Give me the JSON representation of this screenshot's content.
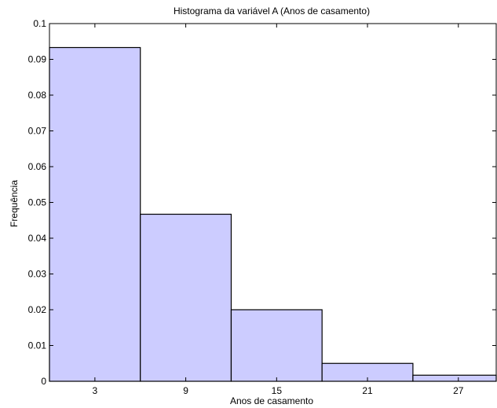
{
  "chart_data": {
    "type": "bar",
    "title": "Histograma da variável A (Anos de casamento)",
    "xlabel": "Anos de casamento",
    "ylabel": "Frequência",
    "categories": [
      "3",
      "9",
      "15",
      "21",
      "27"
    ],
    "bin_edges": [
      0,
      6,
      12,
      18,
      24,
      30
    ],
    "values": [
      0.0933,
      0.0467,
      0.02,
      0.005,
      0.0017
    ],
    "xlim": [
      0,
      29.5
    ],
    "ylim": [
      0,
      0.1
    ],
    "yticks": [
      "0",
      "0.01",
      "0.02",
      "0.03",
      "0.04",
      "0.05",
      "0.06",
      "0.07",
      "0.08",
      "0.09",
      "0.1"
    ],
    "grid": false,
    "bar_fill": "#ccccff",
    "bar_stroke": "#000000"
  }
}
